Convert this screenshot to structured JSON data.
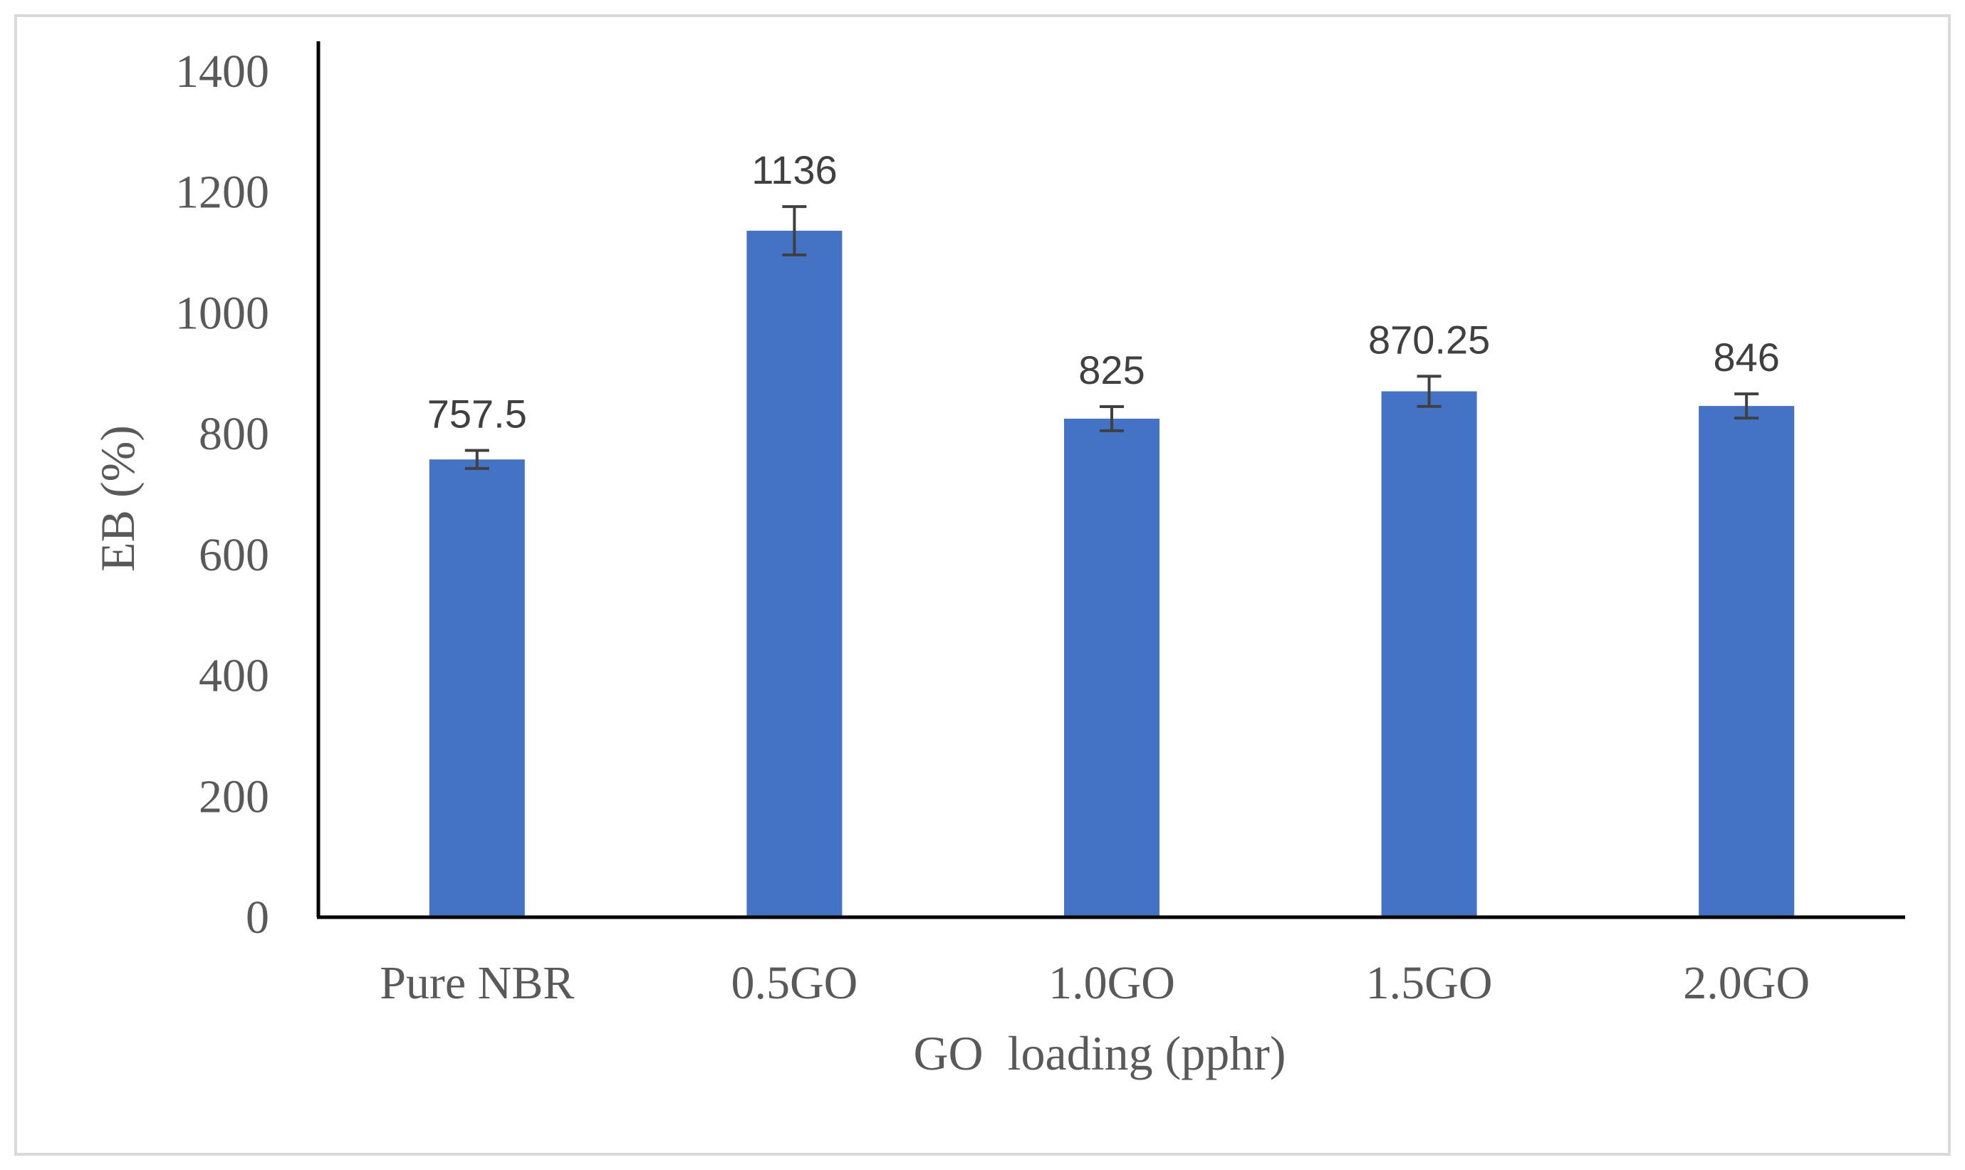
{
  "chart_data": {
    "type": "bar",
    "title": "",
    "xlabel": "GO  loading (pphr)",
    "ylabel": "EB (%)",
    "categories": [
      "Pure NBR",
      "0.5GO",
      "1.0GO",
      "1.5GO",
      "2.0GO"
    ],
    "values": [
      757.5,
      1136,
      825,
      870.25,
      846
    ],
    "data_labels": [
      "757.5",
      "1136",
      "825",
      "870.25",
      "846"
    ],
    "error_bars": [
      15,
      40,
      20,
      25,
      20
    ],
    "ylim": [
      0,
      1400
    ],
    "yticks": [
      0,
      200,
      400,
      600,
      800,
      1000,
      1200,
      1400
    ],
    "ytick_labels": [
      "0",
      "200",
      "400",
      "600",
      "800",
      "1000",
      "1200",
      "1400"
    ],
    "grid": false,
    "legend": "none",
    "colors": {
      "bar": "#4472C4",
      "axis": "#000000",
      "error_bar": "#404040",
      "tick_text": "#595959",
      "label_text": "#404040",
      "frame": "#d9d9d9"
    }
  }
}
